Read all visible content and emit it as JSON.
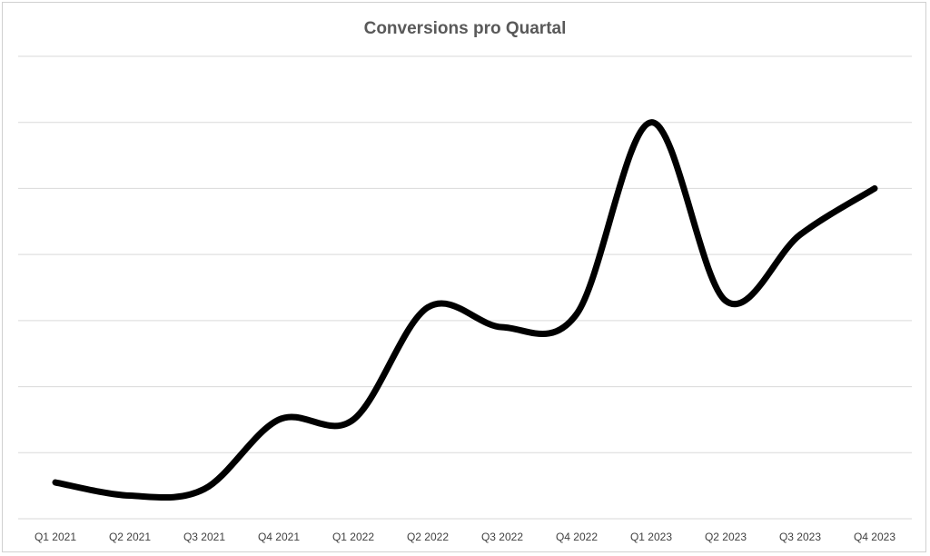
{
  "chart_data": {
    "type": "line",
    "title": "Conversions pro Quartal",
    "xlabel": "",
    "ylabel": "",
    "categories": [
      "Q1 2021",
      "Q2 2021",
      "Q3 2021",
      "Q4 2021",
      "Q1 2022",
      "Q2 2022",
      "Q3 2022",
      "Q4 2022",
      "Q1 2023",
      "Q2 2023",
      "Q3 2023",
      "Q4 2023"
    ],
    "series": [
      {
        "values": [
          0.55,
          0.35,
          0.45,
          1.5,
          1.5,
          3.2,
          2.9,
          3.1,
          6.0,
          3.3,
          4.3,
          5.0
        ],
        "color": "#000000"
      }
    ],
    "ylim": [
      0,
      7
    ],
    "y_gridlines": [
      1,
      2,
      3,
      4,
      5,
      6,
      7
    ],
    "y_tick_labels_shown": false,
    "grid": true,
    "legend": "none",
    "smooth": true
  }
}
